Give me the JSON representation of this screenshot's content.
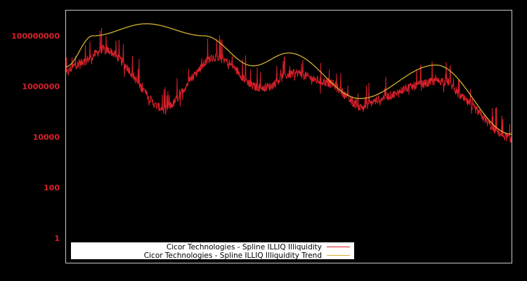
{
  "chart_data": {
    "type": "line",
    "title": "",
    "xlabel": "",
    "ylabel": "",
    "yscale": "log",
    "ylim": [
      0.2,
      400000000
    ],
    "y_ticks": [
      {
        "label": "100000000",
        "value": 100000000
      },
      {
        "label": "1000000",
        "value": 1000000
      },
      {
        "label": "10000",
        "value": 10000
      },
      {
        "label": "100",
        "value": 100
      },
      {
        "label": "1",
        "value": 1
      }
    ],
    "x_ticks": [],
    "grid": false,
    "legend_position": "lower left",
    "series": [
      {
        "name": "Cicor Technologies - Spline ILLIQ Illiquidity",
        "color": "#d8202a",
        "x": [
          0,
          0.02,
          0.04,
          0.06,
          0.08,
          0.1,
          0.12,
          0.14,
          0.16,
          0.18,
          0.2,
          0.22,
          0.24,
          0.26,
          0.28,
          0.3,
          0.32,
          0.34,
          0.36,
          0.38,
          0.4,
          0.42,
          0.44,
          0.46,
          0.48,
          0.5,
          0.52,
          0.54,
          0.56,
          0.58,
          0.6,
          0.62,
          0.64,
          0.66,
          0.68,
          0.7,
          0.72,
          0.74,
          0.76,
          0.78,
          0.8,
          0.82,
          0.84,
          0.86,
          0.88,
          0.9,
          0.92,
          0.94,
          0.96,
          0.98,
          1.0
        ],
        "values": [
          3000000,
          7000000,
          9000000,
          16000000,
          30000000,
          25000000,
          12000000,
          5000000,
          1500000,
          500000,
          180000,
          120000,
          200000,
          600000,
          2000000,
          5000000,
          12000000,
          15000000,
          10000000,
          5000000,
          2000000,
          1000000,
          900000,
          1000000,
          2000000,
          3000000,
          3500000,
          2500000,
          1800000,
          1500000,
          1200000,
          600000,
          250000,
          150000,
          200000,
          300000,
          400000,
          500000,
          800000,
          1000000,
          1200000,
          1500000,
          1700000,
          1500000,
          500000,
          250000,
          120000,
          50000,
          20000,
          12000,
          8000
        ]
      },
      {
        "name": "Cicor Technologies - Spline ILLIQ Illiquidity Trend",
        "color": "#d4b030",
        "x": [
          0,
          0.06,
          0.18,
          0.31,
          0.42,
          0.5,
          0.66,
          0.83,
          1.0
        ],
        "values": [
          6000000,
          100000000,
          300000000,
          100000000,
          6500000,
          21000000,
          330000,
          7000000,
          13000
        ]
      }
    ]
  },
  "legend": {
    "items": [
      {
        "label": "Cicor Technologies - Spline ILLIQ Illiquidity",
        "color": "#d8202a"
      },
      {
        "label": "Cicor Technologies - Spline ILLIQ Illiquidity Trend",
        "color": "#d4b030"
      }
    ]
  }
}
